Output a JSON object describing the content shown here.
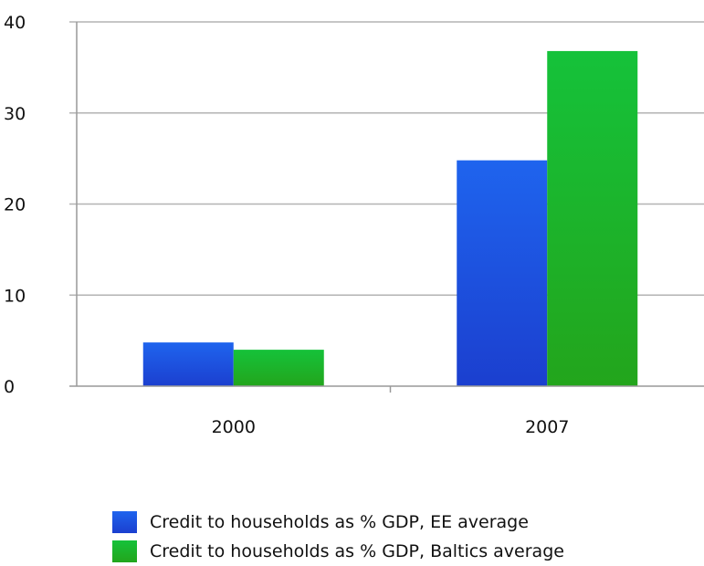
{
  "chart_data": {
    "type": "bar",
    "categories": [
      "2000",
      "2007"
    ],
    "series": [
      {
        "name": "Credit to households as % GDP, EE average",
        "values": [
          4.8,
          24.8
        ],
        "color": "#1f4fe0"
      },
      {
        "name": "Credit to households as % GDP, Baltics average",
        "values": [
          4.0,
          36.8
        ],
        "color": "#19b52e"
      }
    ],
    "title": "",
    "xlabel": "",
    "ylabel": "",
    "ylim": [
      0,
      40
    ],
    "yticks": [
      0,
      10,
      20,
      30,
      40
    ],
    "grid": true,
    "legend_position": "bottom-center"
  }
}
